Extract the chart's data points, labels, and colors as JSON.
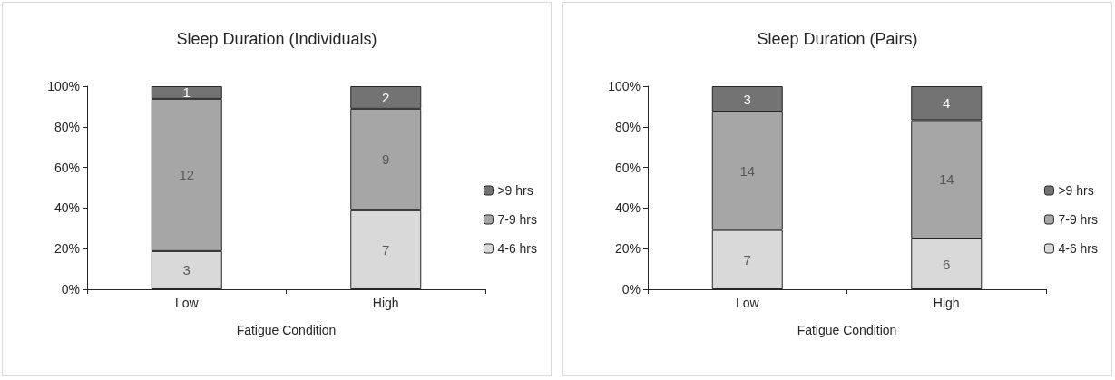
{
  "chart_data": [
    {
      "type": "bar",
      "title": "Sleep Duration (Individuals)",
      "xlabel": "Fatigue Condition",
      "categories": [
        "Low",
        "High"
      ],
      "stacked": true,
      "legend": "right",
      "grid": false,
      "ylim": [
        0,
        100
      ],
      "yticks": [
        {
          "value": 0,
          "label": "0%"
        },
        {
          "value": 20,
          "label": "20%"
        },
        {
          "value": 40,
          "label": "40%"
        },
        {
          "value": 60,
          "label": "60%"
        },
        {
          "value": 80,
          "label": "80%"
        },
        {
          "value": 100,
          "label": "100%"
        }
      ],
      "series": [
        {
          "name": "4-6 hrs",
          "color": "#d9d9d9",
          "values": [
            18.8,
            38.9
          ]
        },
        {
          "name": "7-9 hrs",
          "color": "#a6a6a6",
          "values": [
            75,
            50
          ]
        },
        {
          "name": ">9 hrs",
          "color": "#737373",
          "values": [
            6.2,
            11.1
          ]
        }
      ],
      "annotations": [
        "3",
        "12",
        "1",
        "7",
        "9",
        "2"
      ]
    },
    {
      "type": "bar",
      "title": "Sleep Duration (Pairs)",
      "xlabel": "Fatigue Condition",
      "categories": [
        "Low",
        "High"
      ],
      "stacked": true,
      "legend": "right",
      "grid": false,
      "ylim": [
        0,
        100
      ],
      "yticks": [
        {
          "value": 0,
          "label": "0%"
        },
        {
          "value": 20,
          "label": "20%"
        },
        {
          "value": 40,
          "label": "40%"
        },
        {
          "value": 60,
          "label": "60%"
        },
        {
          "value": 80,
          "label": "80%"
        },
        {
          "value": 100,
          "label": "100%"
        }
      ],
      "series": [
        {
          "name": "4-6 hrs",
          "color": "#d9d9d9",
          "values": [
            29.2,
            25
          ]
        },
        {
          "name": "7-9 hrs",
          "color": "#a6a6a6",
          "values": [
            58.3,
            58.3
          ]
        },
        {
          "name": ">9 hrs",
          "color": "#737373",
          "values": [
            12.5,
            16.7
          ]
        }
      ],
      "annotations": [
        "7",
        "14",
        "3",
        "6",
        "14",
        "4"
      ]
    }
  ]
}
